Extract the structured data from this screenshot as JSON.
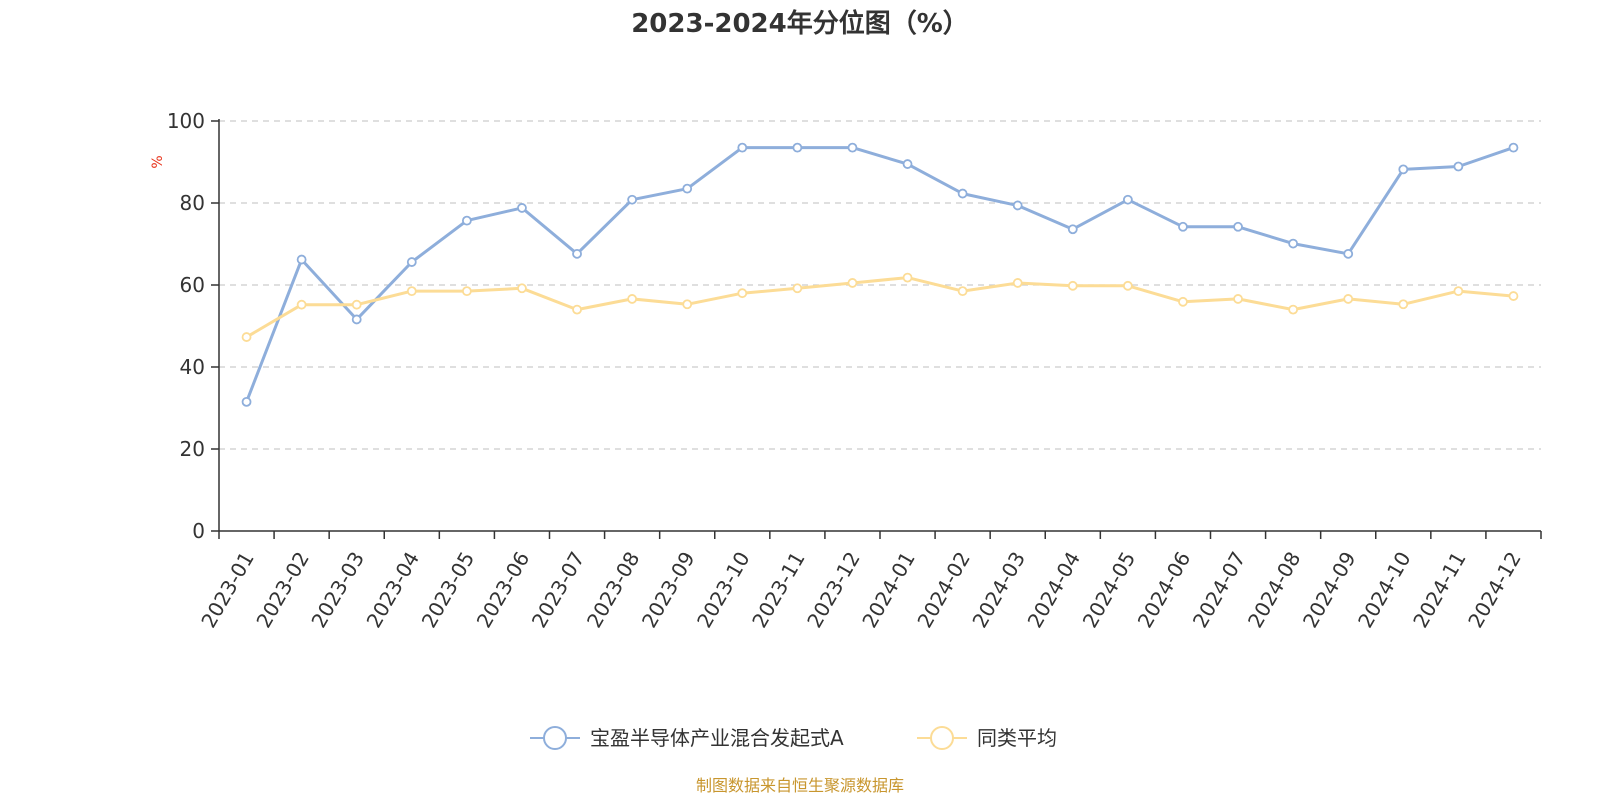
{
  "chart_data": {
    "type": "line",
    "title": "2023-2024年分位图（%）",
    "ylabel": "%",
    "ylim": [
      0,
      100
    ],
    "yticks": [
      "0",
      "20",
      "40",
      "60",
      "80",
      "100"
    ],
    "grid": true,
    "legend_position": "bottom",
    "categories": [
      "2023-01",
      "2023-02",
      "2023-03",
      "2023-04",
      "2023-05",
      "2023-06",
      "2023-07",
      "2023-08",
      "2023-09",
      "2023-10",
      "2023-11",
      "2023-12",
      "2024-01",
      "2024-02",
      "2024-03",
      "2024-04",
      "2024-05",
      "2024-06",
      "2024-07",
      "2024-08",
      "2024-09",
      "2024-10",
      "2024-11",
      "2024-12"
    ],
    "series": [
      {
        "name": "宝盈半导体产业混合发起式A",
        "color": "#8eaedb",
        "values": [
          31.5,
          66.2,
          51.6,
          65.6,
          75.7,
          78.8,
          67.6,
          80.8,
          83.5,
          93.5,
          93.5,
          93.5,
          89.5,
          82.3,
          79.4,
          73.6,
          80.8,
          74.2,
          74.2,
          70.1,
          67.6,
          88.2,
          88.9,
          93.5
        ]
      },
      {
        "name": "同类平均",
        "color": "#fcdc96",
        "values": [
          47.3,
          55.2,
          55.2,
          58.5,
          58.5,
          59.2,
          54.0,
          56.6,
          55.3,
          58.0,
          59.2,
          60.5,
          61.8,
          58.5,
          60.5,
          59.8,
          59.8,
          55.9,
          56.6,
          54.0,
          56.6,
          55.3,
          58.5,
          57.3
        ]
      }
    ],
    "source": "制图数据来自恒生聚源数据库",
    "source_color": "#c8962e",
    "ylabel_color": "#e8341c",
    "grid_color": "#cccccc",
    "axis_color": "#333333"
  }
}
